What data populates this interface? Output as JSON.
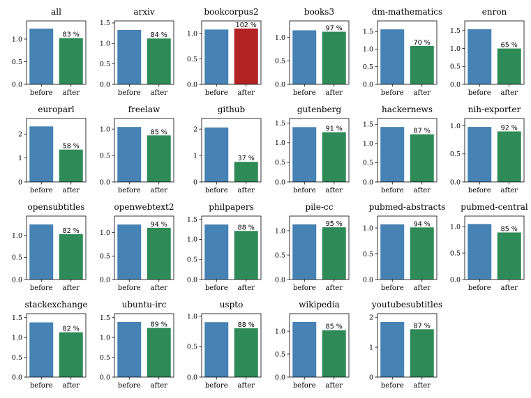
{
  "chart_data": {
    "type": "bar",
    "categories": [
      "before",
      "after"
    ],
    "colors": {
      "before": "#4682b4",
      "after": "#2e8b57",
      "after_increase": "#b22222"
    },
    "panels": [
      {
        "title": "all",
        "values": [
          1.23,
          1.02
        ],
        "ylim": [
          0,
          1.4
        ],
        "yticks": [
          0.0,
          0.5,
          1.0
        ],
        "ytick_labels": [
          "0.0",
          "0.5",
          "1.0"
        ],
        "label": "83 %"
      },
      {
        "title": "arxiv",
        "values": [
          1.33,
          1.12
        ],
        "ylim": [
          0,
          1.55
        ],
        "yticks": [
          0.0,
          0.5,
          1.0,
          1.5
        ],
        "ytick_labels": [
          "0.0",
          "0.5",
          "1.0",
          "1.5"
        ],
        "label": "84 %"
      },
      {
        "title": "bookcorpus2",
        "values": [
          1.08,
          1.1
        ],
        "ylim": [
          0,
          1.25
        ],
        "yticks": [
          0.0,
          0.5,
          1.0
        ],
        "ytick_labels": [
          "0.0",
          "0.5",
          "1.0"
        ],
        "label": "102 %"
      },
      {
        "title": "books3",
        "values": [
          1.15,
          1.12
        ],
        "ylim": [
          0,
          1.35
        ],
        "yticks": [
          0.0,
          0.5,
          1.0
        ],
        "ytick_labels": [
          "0.0",
          "0.5",
          "1.0"
        ],
        "label": "97 %"
      },
      {
        "title": "dm-mathematics",
        "values": [
          1.56,
          1.09
        ],
        "ylim": [
          0,
          1.8
        ],
        "yticks": [
          0.0,
          0.5,
          1.0,
          1.5
        ],
        "ytick_labels": [
          "0.0",
          "0.5",
          "1.0",
          "1.5"
        ],
        "label": "70 %"
      },
      {
        "title": "enron",
        "values": [
          1.54,
          1.0
        ],
        "ylim": [
          0,
          1.77
        ],
        "yticks": [
          0.0,
          0.5,
          1.0,
          1.5
        ],
        "ytick_labels": [
          "0.0",
          "0.5",
          "1.0",
          "1.5"
        ],
        "label": "65 %"
      },
      {
        "title": "europarl",
        "values": [
          2.32,
          1.35
        ],
        "ylim": [
          0,
          2.65
        ],
        "yticks": [
          0,
          1,
          2
        ],
        "ytick_labels": [
          "0",
          "1",
          "2"
        ],
        "label": "58 %"
      },
      {
        "title": "freelaw",
        "values": [
          1.04,
          0.88
        ],
        "ylim": [
          0,
          1.2
        ],
        "yticks": [
          0.0,
          0.5,
          1.0
        ],
        "ytick_labels": [
          "0.0",
          "0.5",
          "1.0"
        ],
        "label": "85 %"
      },
      {
        "title": "github",
        "values": [
          2.06,
          0.76
        ],
        "ylim": [
          0,
          2.4
        ],
        "yticks": [
          0,
          1,
          2
        ],
        "ytick_labels": [
          "0",
          "1",
          "2"
        ],
        "label": "37 %"
      },
      {
        "title": "gutenberg",
        "values": [
          1.4,
          1.27
        ],
        "ylim": [
          0,
          1.62
        ],
        "yticks": [
          0.0,
          0.5,
          1.0,
          1.5
        ],
        "ytick_labels": [
          "0.0",
          "0.5",
          "1.0",
          "1.5"
        ],
        "label": "91 %"
      },
      {
        "title": "hackernews",
        "values": [
          1.43,
          1.24
        ],
        "ylim": [
          0,
          1.65
        ],
        "yticks": [
          0.0,
          0.5,
          1.0,
          1.5
        ],
        "ytick_labels": [
          "0.0",
          "0.5",
          "1.0",
          "1.5"
        ],
        "label": "87 %"
      },
      {
        "title": "nih-exporter",
        "values": [
          0.98,
          0.9
        ],
        "ylim": [
          0,
          1.13
        ],
        "yticks": [
          0.0,
          0.5,
          1.0
        ],
        "ytick_labels": [
          "0.0",
          "0.5",
          "1.0"
        ],
        "label": "92 %"
      },
      {
        "title": "opensubtitles",
        "values": [
          1.25,
          1.03
        ],
        "ylim": [
          0,
          1.44
        ],
        "yticks": [
          0.0,
          0.5,
          1.0
        ],
        "ytick_labels": [
          "0.0",
          "0.5",
          "1.0"
        ],
        "label": "82 %"
      },
      {
        "title": "openwebtext2",
        "values": [
          1.17,
          1.1
        ],
        "ylim": [
          0,
          1.35
        ],
        "yticks": [
          0.0,
          0.5,
          1.0
        ],
        "ytick_labels": [
          "0.0",
          "0.5",
          "1.0"
        ],
        "label": "94 %"
      },
      {
        "title": "philpapers",
        "values": [
          1.37,
          1.21
        ],
        "ylim": [
          0,
          1.58
        ],
        "yticks": [
          0.0,
          0.5,
          1.0,
          1.5
        ],
        "ytick_labels": [
          "0.0",
          "0.5",
          "1.0",
          "1.5"
        ],
        "label": "88 %"
      },
      {
        "title": "pile-cc",
        "values": [
          1.13,
          1.07
        ],
        "ylim": [
          0,
          1.3
        ],
        "yticks": [
          0.0,
          0.5,
          1.0
        ],
        "ytick_labels": [
          "0.0",
          "0.5",
          "1.0"
        ],
        "label": "95 %"
      },
      {
        "title": "pubmed-abstracts",
        "values": [
          1.07,
          1.01
        ],
        "ylim": [
          0,
          1.23
        ],
        "yticks": [
          0.0,
          0.5,
          1.0
        ],
        "ytick_labels": [
          "0.0",
          "0.5",
          "1.0"
        ],
        "label": "94 %"
      },
      {
        "title": "pubmed-central",
        "values": [
          1.05,
          0.89
        ],
        "ylim": [
          0,
          1.2
        ],
        "yticks": [
          0.0,
          0.5,
          1.0
        ],
        "ytick_labels": [
          "0.0",
          "0.5",
          "1.0"
        ],
        "label": "85 %"
      },
      {
        "title": "stackexchange",
        "values": [
          1.38,
          1.13
        ],
        "ylim": [
          0,
          1.6
        ],
        "yticks": [
          0.0,
          0.5,
          1.0,
          1.5
        ],
        "ytick_labels": [
          "0.0",
          "0.5",
          "1.0",
          "1.5"
        ],
        "label": "82 %"
      },
      {
        "title": "ubuntu-irc",
        "values": [
          1.39,
          1.24
        ],
        "ylim": [
          0,
          1.6
        ],
        "yticks": [
          0.0,
          0.5,
          1.0,
          1.5
        ],
        "ytick_labels": [
          "0.0",
          "0.5",
          "1.0",
          "1.5"
        ],
        "label": "89 %"
      },
      {
        "title": "uspto",
        "values": [
          0.9,
          0.8
        ],
        "ylim": [
          0,
          1.04
        ],
        "yticks": [
          0.0,
          0.5,
          1.0
        ],
        "ytick_labels": [
          "0.0",
          "0.5",
          "1.0"
        ],
        "label": "88 %"
      },
      {
        "title": "wikipedia",
        "values": [
          1.2,
          1.02
        ],
        "ylim": [
          0,
          1.38
        ],
        "yticks": [
          0.0,
          0.5,
          1.0
        ],
        "ytick_labels": [
          "0.0",
          "0.5",
          "1.0"
        ],
        "label": "85 %"
      },
      {
        "title": "youtubesubtitles",
        "values": [
          1.84,
          1.6
        ],
        "ylim": [
          0,
          2.12
        ],
        "yticks": [
          0,
          1,
          2
        ],
        "ytick_labels": [
          "0",
          "1",
          "2"
        ],
        "label": "87 %"
      }
    ]
  }
}
